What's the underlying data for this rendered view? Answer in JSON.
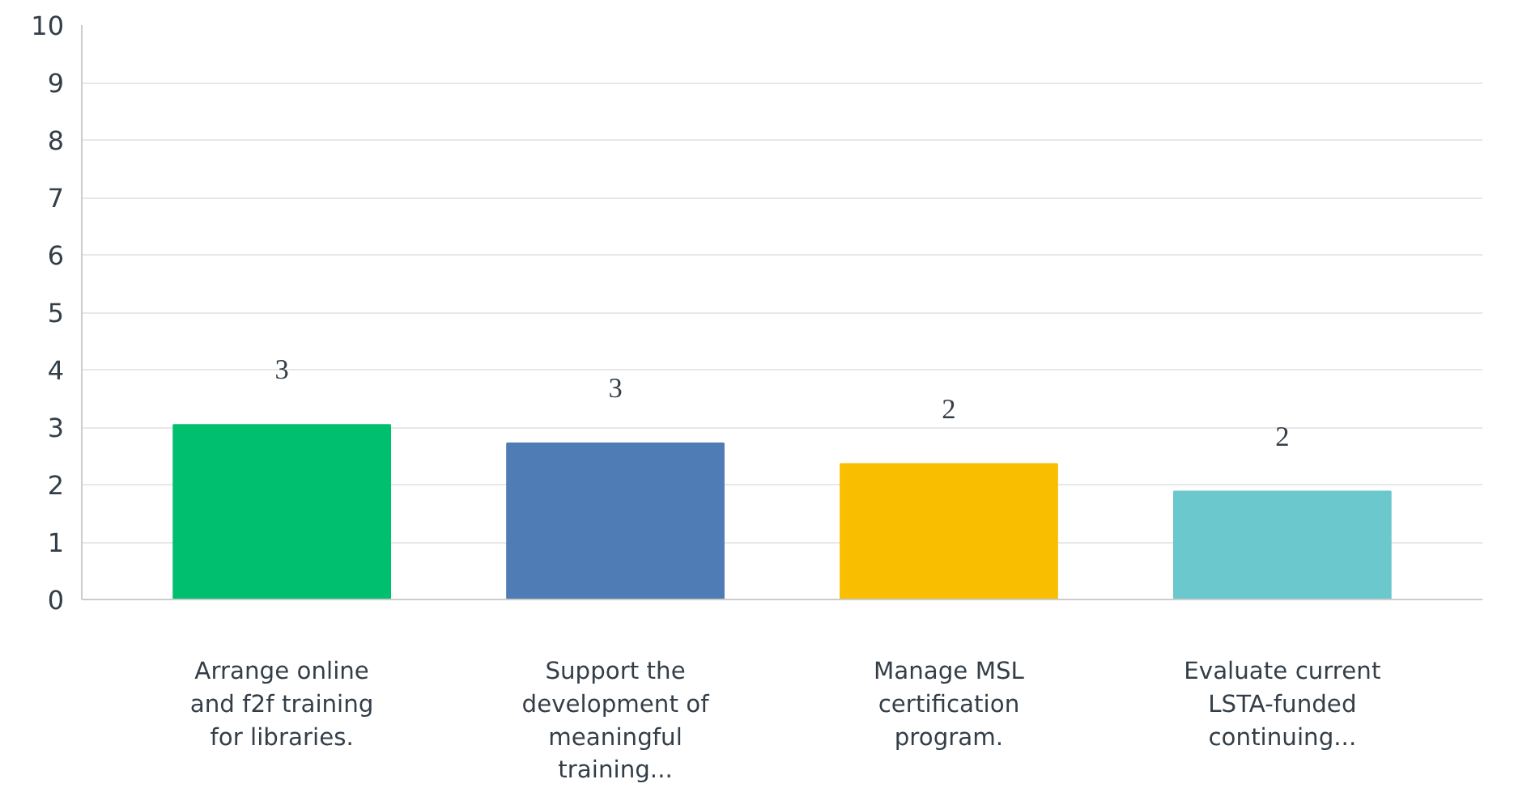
{
  "chart_data": {
    "type": "bar",
    "categories": [
      "Arrange online and f2f training for libraries.",
      "Support the development of meaningful training...",
      "Manage MSL certification program.",
      "Evaluate current LSTA-funded continuing..."
    ],
    "values": [
      3.04,
      2.72,
      2.36,
      1.88
    ],
    "colors": [
      "#00bf6f",
      "#507cb6",
      "#f9be00",
      "#6bc8cd"
    ],
    "value_labels": [
      "3",
      "3",
      "2",
      "2"
    ],
    "ylim": [
      0,
      10
    ],
    "yticks": [
      0,
      1,
      2,
      3,
      4,
      5,
      6,
      7,
      8,
      9,
      10
    ],
    "grid": "y"
  }
}
